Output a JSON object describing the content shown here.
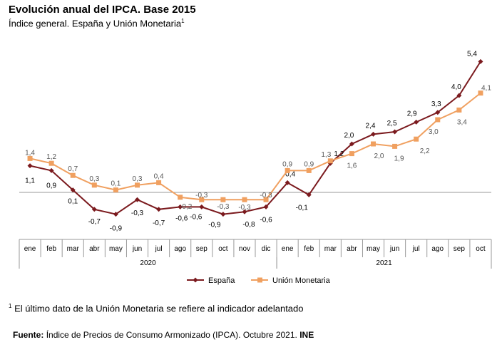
{
  "title": "Evolución anual del IPCA. Base 2015",
  "subtitle": "Índice general. España y Unión Monetaria",
  "subtitle_sup": "1",
  "footnote": {
    "sup": "1",
    "text": "El último dato de la Unión Monetaria se refiere al indicador adelantado"
  },
  "source": {
    "label": "Fuente:",
    "text": "Índice de Precios de Consumo Armonizado (IPCA). Octubre 2021.",
    "org": "INE"
  },
  "chart_data": {
    "type": "line",
    "categories": [
      "ene",
      "feb",
      "mar",
      "abr",
      "may",
      "jun",
      "jul",
      "ago",
      "sep",
      "oct",
      "nov",
      "dic",
      "ene",
      "feb",
      "mar",
      "abr",
      "may",
      "jun",
      "jul",
      "ago",
      "sep",
      "oct"
    ],
    "year_groups": [
      {
        "label": "2020",
        "start": 0,
        "end": 11
      },
      {
        "label": "2021",
        "start": 12,
        "end": 21
      }
    ],
    "ylim": [
      -2.0,
      6.0
    ],
    "series": [
      {
        "name": "España",
        "color": "#7b1a1e",
        "marker": "diamond",
        "values": [
          1.1,
          0.9,
          0.1,
          -0.7,
          -0.9,
          -0.3,
          -0.7,
          -0.6,
          -0.6,
          -0.9,
          -0.8,
          -0.6,
          0.4,
          -0.1,
          1.2,
          2.0,
          2.4,
          2.5,
          2.9,
          3.3,
          4.0,
          5.4
        ],
        "labels": [
          "1,1",
          "0,9",
          "0,1",
          "-0,7",
          "-0,9",
          "-0,3",
          "-0,7",
          "-0,6",
          "-0,6",
          "-0,9",
          "-0,8",
          "-0,6",
          "0,4",
          "-0,1",
          "1,2",
          "2,0",
          "2,4",
          "2,5",
          "2,9",
          "3,3",
          "4,0",
          "5,4"
        ]
      },
      {
        "name": "Unión Monetaria",
        "color": "#f0a060",
        "marker": "square",
        "values": [
          1.4,
          1.2,
          0.7,
          0.3,
          0.1,
          0.3,
          0.4,
          -0.2,
          -0.3,
          -0.3,
          -0.3,
          -0.3,
          0.9,
          0.9,
          1.3,
          1.6,
          2.0,
          1.9,
          2.2,
          3.0,
          3.4,
          4.1
        ],
        "labels": [
          "1,4",
          "1,2",
          "0,7",
          "0,3",
          "0,1",
          "0,3",
          "0,4",
          "-0,2",
          "-0,3",
          "-0,3",
          "-0,3",
          "-0,3",
          "0,9",
          "0,9",
          "1,3",
          "1,6",
          "2,0",
          "1,9",
          "2,2",
          "3,0",
          "3,4",
          "4,1"
        ]
      }
    ]
  }
}
